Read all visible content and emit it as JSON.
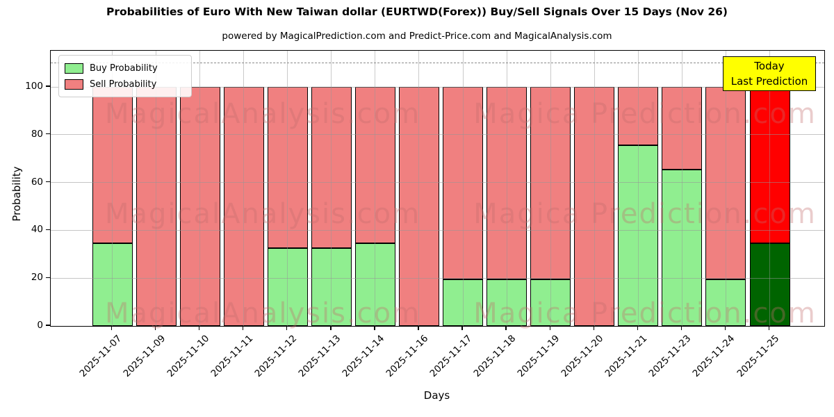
{
  "header": {
    "title": "Probabilities of Euro With New Taiwan dollar (EURTWD(Forex)) Buy/Sell Signals Over 15 Days (Nov 26)",
    "subtitle": "powered by MagicalPrediction.com and Predict-Price.com and MagicalAnalysis.com"
  },
  "legend": {
    "items": [
      {
        "label": "Buy Probability",
        "color": "#90ee90"
      },
      {
        "label": "Sell Probability",
        "color": "#f08080"
      }
    ]
  },
  "annotation": {
    "line1": "Today",
    "line2": "Last Prediction",
    "bg_color": "#ffff00"
  },
  "watermarks": {
    "left_text": "MagicalAnalysis.com",
    "right_text": "Magica Prediction.com"
  },
  "chart_data": {
    "type": "bar",
    "stacked": true,
    "title": "Probabilities of Euro With New Taiwan dollar (EURTWD(Forex)) Buy/Sell Signals Over 15 Days (Nov 26)",
    "xlabel": "Days",
    "ylabel": "Probability",
    "ylim": [
      0,
      115
    ],
    "yticks": [
      0,
      20,
      40,
      60,
      80,
      100
    ],
    "grid": true,
    "legend_position": "upper-left",
    "dashed_reference_line_y": 110,
    "categories": [
      "2025-11-07",
      "2025-11-09",
      "2025-11-10",
      "2025-11-11",
      "2025-11-12",
      "2025-11-13",
      "2025-11-14",
      "2025-11-16",
      "2025-11-17",
      "2025-11-18",
      "2025-11-19",
      "2025-11-20",
      "2025-11-21",
      "2025-11-23",
      "2025-11-24",
      "2025-11-25"
    ],
    "series": [
      {
        "name": "Buy Probability",
        "values": [
          34.5,
          0,
          0,
          0,
          32.5,
          32.5,
          34.5,
          0,
          19.5,
          19.5,
          19.5,
          0,
          75.5,
          65.5,
          19.5,
          34.5
        ],
        "color": "#90ee90"
      },
      {
        "name": "Sell Probability",
        "values": [
          65.5,
          100,
          100,
          100,
          67.5,
          67.5,
          65.5,
          100,
          80.5,
          80.5,
          80.5,
          100,
          24.5,
          34.5,
          80.5,
          65.5
        ],
        "color": "#f08080"
      }
    ],
    "today_bar": {
      "index": 15,
      "buy_color": "#006400",
      "sell_color": "#ff0000",
      "label": "Today Last Prediction"
    },
    "bar_edge_color": "#000000"
  }
}
